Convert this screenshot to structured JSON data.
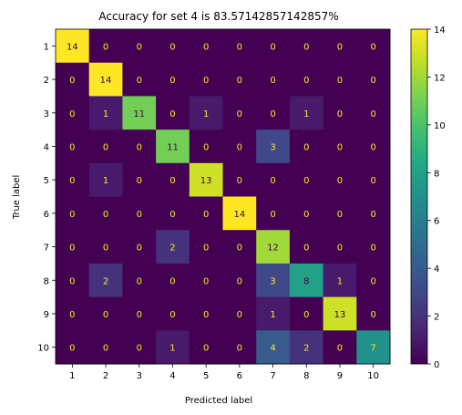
{
  "chart_data": {
    "type": "heatmap",
    "title": "Accuracy for set 4 is 83.57142857142857%",
    "xlabel": "Predicted label",
    "ylabel": "True label",
    "x_categories": [
      "1",
      "2",
      "3",
      "4",
      "5",
      "6",
      "7",
      "8",
      "9",
      "10"
    ],
    "y_categories": [
      "1",
      "2",
      "3",
      "4",
      "5",
      "6",
      "7",
      "8",
      "9",
      "10"
    ],
    "values": [
      [
        14,
        0,
        0,
        0,
        0,
        0,
        0,
        0,
        0,
        0
      ],
      [
        0,
        14,
        0,
        0,
        0,
        0,
        0,
        0,
        0,
        0
      ],
      [
        0,
        1,
        11,
        0,
        1,
        0,
        0,
        1,
        0,
        0
      ],
      [
        0,
        0,
        0,
        11,
        0,
        0,
        3,
        0,
        0,
        0
      ],
      [
        0,
        1,
        0,
        0,
        13,
        0,
        0,
        0,
        0,
        0
      ],
      [
        0,
        0,
        0,
        0,
        0,
        14,
        0,
        0,
        0,
        0
      ],
      [
        0,
        0,
        0,
        2,
        0,
        0,
        12,
        0,
        0,
        0
      ],
      [
        0,
        2,
        0,
        0,
        0,
        0,
        3,
        8,
        1,
        0
      ],
      [
        0,
        0,
        0,
        0,
        0,
        0,
        1,
        0,
        13,
        0
      ],
      [
        0,
        0,
        0,
        1,
        0,
        0,
        4,
        2,
        0,
        7
      ]
    ],
    "colorbar": {
      "colormap": "viridis",
      "range": [
        0,
        14
      ],
      "ticks": [
        0,
        2,
        4,
        6,
        8,
        10,
        12,
        14
      ]
    }
  }
}
